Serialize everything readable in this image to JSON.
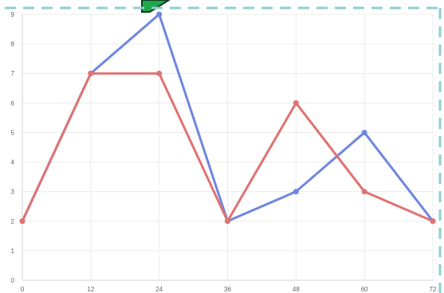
{
  "chart_data": {
    "type": "line",
    "x": [
      0,
      12,
      24,
      36,
      48,
      60,
      72
    ],
    "series": [
      {
        "values": [
          2,
          7,
          9,
          2,
          3,
          5,
          2
        ],
        "color": "#6f86e0"
      },
      {
        "values": [
          2,
          7,
          7,
          2,
          6,
          3,
          2
        ],
        "color": "#e07272"
      }
    ],
    "xlim": [
      0,
      72
    ],
    "ylim": [
      0,
      9
    ],
    "xticks": [
      "0",
      "12",
      "24",
      "36",
      "48",
      "60",
      "72"
    ],
    "yticks": [
      "0",
      "1",
      "2",
      "3",
      "4",
      "5",
      "6",
      "7",
      "8",
      "9"
    ],
    "grid": true,
    "title": "",
    "xlabel": "",
    "ylabel": ""
  },
  "overlay": {
    "border_color": "#8fcfcf",
    "arrow_colors": [
      "#1fa84a",
      "#0d3d1f"
    ],
    "arrow_icon": "green-arrow-icon"
  }
}
